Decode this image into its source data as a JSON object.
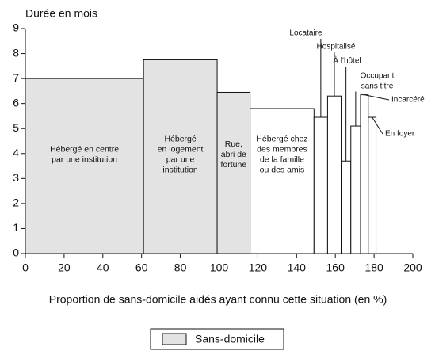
{
  "chart_data": {
    "type": "variable_width_bar",
    "y_label": "Durée en mois",
    "x_label": "Proportion de sans-domicile aidés ayant connu cette situation (en %)",
    "categories": [
      "Hébergé en centre\npar une institution",
      "Hébergé\nen logement\npar une\ninstitution",
      "Rue,\nabri de\nfortune",
      "Hébergé chez\ndes membres\nde la famille\nou des amis",
      "Locataire",
      "Hospitalisé",
      "À l'hôtel",
      "Occupant\nsans titre",
      "Incarcéré",
      "En foyer"
    ],
    "x_edges": [
      0,
      61,
      99,
      116,
      149,
      156,
      163,
      168,
      173,
      177,
      181
    ],
    "values": [
      7.0,
      7.75,
      6.45,
      5.8,
      5.45,
      6.3,
      3.7,
      5.1,
      6.35,
      5.45
    ],
    "colors": [
      "#e3e3e3",
      "#e3e3e3",
      "#e3e3e3",
      "#ffffff",
      "#ffffff",
      "#ffffff",
      "#ffffff",
      "#ffffff",
      "#ffffff",
      "#ffffff"
    ],
    "xlim": [
      0,
      200
    ],
    "xticks": [
      0,
      20,
      40,
      60,
      80,
      100,
      120,
      140,
      160,
      180,
      200
    ],
    "ylim": [
      0,
      9
    ],
    "yticks": [
      0,
      1,
      2,
      3,
      4,
      5,
      6,
      7,
      8,
      9
    ],
    "legend": {
      "name": "Sans-domicile",
      "color": "#e3e3e3"
    }
  }
}
